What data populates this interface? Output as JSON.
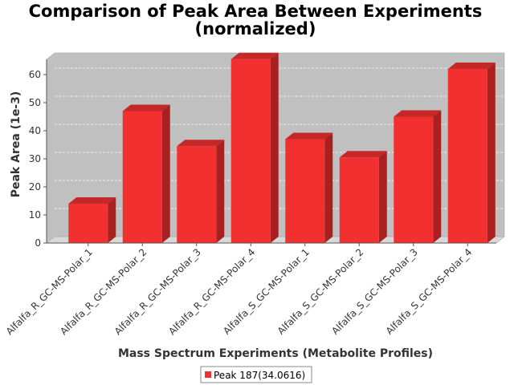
{
  "colors": {
    "bar_front": "#f23030",
    "bar_side": "#a82020",
    "bar_top": "#c42828",
    "plot_bg": "#c0c0c0",
    "floor": "#d8d8d8",
    "gridline": "#ffffff"
  },
  "chart_data": {
    "type": "bar",
    "title_lines": [
      "Comparison of Peak Area Between Experiments",
      "(normalized)"
    ],
    "xlabel": "Mass Spectrum Experiments (Metabolite Profiles)",
    "ylabel": "Peak Area (1e-3)",
    "ylim": [
      0,
      66
    ],
    "yticks": [
      0,
      10,
      20,
      30,
      40,
      50,
      60
    ],
    "grid": true,
    "legend_position": "bottom-center",
    "categories": [
      "Alfalfa_R_GC-MS-Polar_1",
      "Alfalfa_R_GC-MS-Polar_2",
      "Alfalfa_R_GC-MS-Polar_3",
      "Alfalfa_R_GC-MS-Polar_4",
      "Alfalfa_S_GC-MS-Polar_1",
      "Alfalfa_S_GC-MS-Polar_2",
      "Alfalfa_S_GC-MS-Polar_3",
      "Alfalfa_S_GC-MS-Polar_4"
    ],
    "series": [
      {
        "name": "Peak 187(34.0616)",
        "values": [
          14,
          47,
          34.5,
          65.5,
          37,
          30.5,
          45,
          62
        ]
      }
    ]
  }
}
